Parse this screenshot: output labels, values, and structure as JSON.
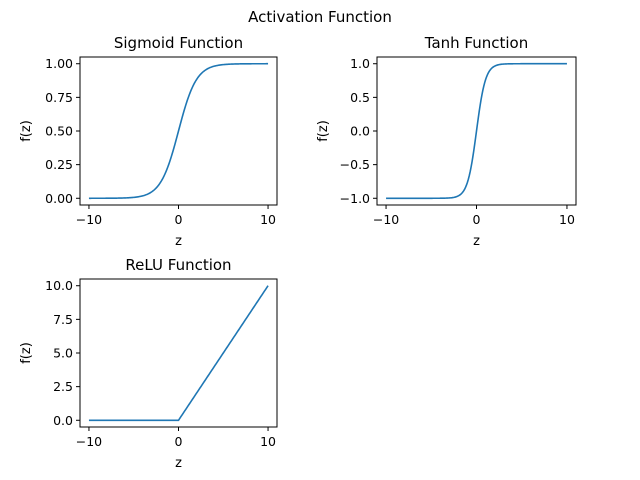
{
  "figure_title": "Activation Function",
  "chart_data": [
    {
      "type": "line",
      "title": "Sigmoid Function",
      "xlabel": "z",
      "ylabel": "f(z)",
      "function": "sigmoid",
      "x_range": [
        -10,
        10
      ],
      "xlim": [
        -11,
        11
      ],
      "ylim": [
        -0.05,
        1.05
      ],
      "xticks": [
        -10,
        0,
        10
      ],
      "yticks": [
        0.0,
        0.25,
        0.5,
        0.75,
        1.0
      ],
      "xtick_labels": [
        "−10",
        "0",
        "10"
      ],
      "ytick_labels": [
        "0.00",
        "0.25",
        "0.50",
        "0.75",
        "1.00"
      ],
      "grid": false,
      "line_color": "#1f77b4",
      "series": [
        {
          "x": [
            -10,
            -8,
            -6,
            -4,
            -3,
            -2,
            -1,
            0,
            1,
            2,
            3,
            4,
            6,
            8,
            10
          ],
          "y": [
            4.54e-05,
            0.000335,
            0.00247,
            0.018,
            0.0474,
            0.1192,
            0.2689,
            0.5,
            0.7311,
            0.8808,
            0.9526,
            0.982,
            0.9975,
            0.9997,
            0.99995
          ]
        }
      ]
    },
    {
      "type": "line",
      "title": "Tanh Function",
      "xlabel": "z",
      "ylabel": "f(z)",
      "function": "tanh",
      "x_range": [
        -10,
        10
      ],
      "xlim": [
        -11,
        11
      ],
      "ylim": [
        -1.1,
        1.1
      ],
      "xticks": [
        -10,
        0,
        10
      ],
      "yticks": [
        -1.0,
        -0.5,
        0.0,
        0.5,
        1.0
      ],
      "xtick_labels": [
        "−10",
        "0",
        "10"
      ],
      "ytick_labels": [
        "−1.0",
        "−0.5",
        "0.0",
        "0.5",
        "1.0"
      ],
      "grid": false,
      "line_color": "#1f77b4",
      "series": [
        {
          "x": [
            -10,
            -6,
            -4,
            -3,
            -2,
            -1,
            -0.5,
            0,
            0.5,
            1,
            2,
            3,
            4,
            6,
            10
          ],
          "y": [
            -1.0,
            -1.0,
            -0.9993,
            -0.9951,
            -0.964,
            -0.7616,
            -0.4621,
            0.0,
            0.4621,
            0.7616,
            0.964,
            0.9951,
            0.9993,
            1.0,
            1.0
          ]
        }
      ]
    },
    {
      "type": "line",
      "title": "ReLU Function",
      "xlabel": "z",
      "ylabel": "f(z)",
      "function": "relu",
      "x_range": [
        -10,
        10
      ],
      "xlim": [
        -11,
        11
      ],
      "ylim": [
        -0.5,
        10.5
      ],
      "xticks": [
        -10,
        0,
        10
      ],
      "yticks": [
        0.0,
        2.5,
        5.0,
        7.5,
        10.0
      ],
      "xtick_labels": [
        "−10",
        "0",
        "10"
      ],
      "ytick_labels": [
        "0.0",
        "2.5",
        "5.0",
        "7.5",
        "10.0"
      ],
      "grid": false,
      "line_color": "#1f77b4",
      "series": [
        {
          "x": [
            -10,
            -5,
            0,
            5,
            10
          ],
          "y": [
            0,
            0,
            0,
            5,
            10
          ]
        }
      ]
    }
  ]
}
